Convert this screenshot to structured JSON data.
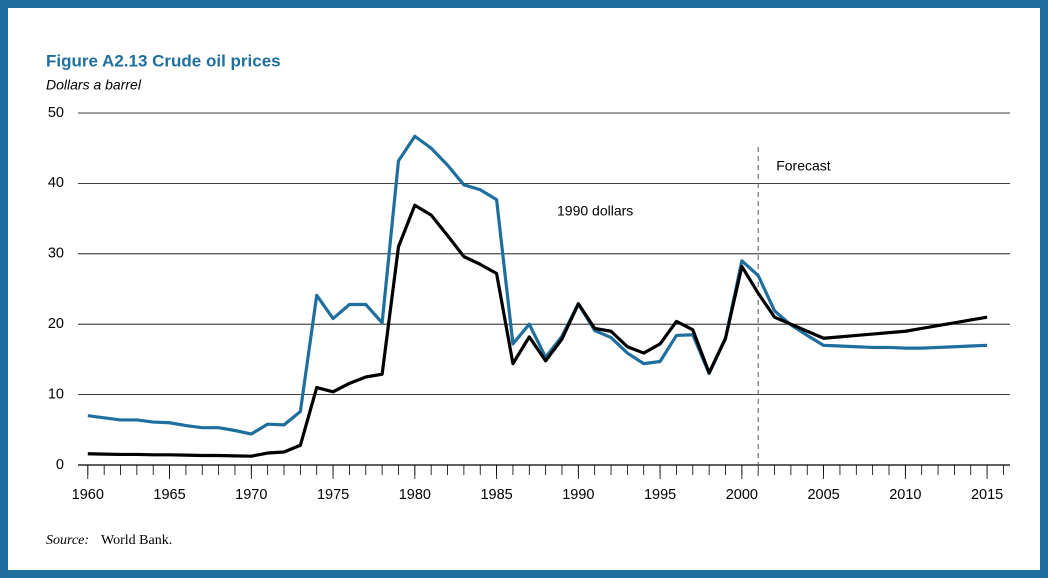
{
  "chart_data": {
    "type": "line",
    "title": "Figure A2.13  Crude oil prices",
    "y_label": "Dollars a barrel",
    "annotation": "Forecast",
    "forecast_x": 2001,
    "source_label": "Source:",
    "source": "World Bank.",
    "x": [
      1960,
      1961,
      1962,
      1963,
      1964,
      1965,
      1966,
      1967,
      1968,
      1969,
      1970,
      1971,
      1972,
      1973,
      1974,
      1975,
      1976,
      1977,
      1978,
      1979,
      1980,
      1981,
      1982,
      1983,
      1984,
      1985,
      1986,
      1987,
      1988,
      1989,
      1990,
      1991,
      1992,
      1993,
      1994,
      1995,
      1996,
      1997,
      1998,
      1999,
      2000,
      2001,
      2002,
      2003,
      2004,
      2005,
      2006,
      2007,
      2008,
      2009,
      2010,
      2011,
      2012,
      2013,
      2014,
      2015
    ],
    "series": [
      {
        "name": "1990 dollars",
        "color": "#1f6f9e",
        "values": [
          7.0,
          6.7,
          6.4,
          6.4,
          6.1,
          6.0,
          5.6,
          5.3,
          5.3,
          4.9,
          4.4,
          5.8,
          5.7,
          7.6,
          24.1,
          20.8,
          22.8,
          22.8,
          20.2,
          43.2,
          46.7,
          45.0,
          42.6,
          39.8,
          39.1,
          37.7,
          17.2,
          20.0,
          15.3,
          18.3,
          22.9,
          19.1,
          18.1,
          15.9,
          14.4,
          14.7,
          18.4,
          18.5,
          13.0,
          18.0,
          29.0,
          26.9,
          21.9,
          19.9,
          18.4,
          17.0,
          16.9,
          16.8,
          16.7,
          16.7,
          16.6,
          16.6,
          16.7,
          16.8,
          16.9,
          17.0
        ]
      },
      {
        "color": "#000000",
        "values": [
          1.6,
          1.55,
          1.5,
          1.5,
          1.45,
          1.45,
          1.4,
          1.35,
          1.35,
          1.3,
          1.25,
          1.7,
          1.85,
          2.8,
          11.0,
          10.4,
          11.6,
          12.5,
          12.9,
          31.0,
          36.9,
          35.5,
          32.6,
          29.6,
          28.5,
          27.2,
          14.4,
          18.2,
          14.8,
          17.9,
          22.9,
          19.4,
          19.0,
          16.8,
          15.9,
          17.2,
          20.4,
          19.2,
          13.1,
          18.0,
          28.2,
          24.4,
          21.0,
          20.0,
          19.0,
          18.0,
          18.2,
          18.4,
          18.6,
          18.8,
          19.0,
          19.4,
          19.8,
          20.2,
          20.6,
          21.0
        ]
      }
    ],
    "xlim": [
      1959.4,
      2016.4
    ],
    "xticks": [
      1960,
      1965,
      1970,
      1975,
      1980,
      1985,
      1990,
      1995,
      2000,
      2005,
      2010,
      2015
    ],
    "ylim": [
      0,
      50
    ],
    "yticks": [
      0,
      10,
      20,
      30,
      40,
      50
    ],
    "grid": true
  }
}
